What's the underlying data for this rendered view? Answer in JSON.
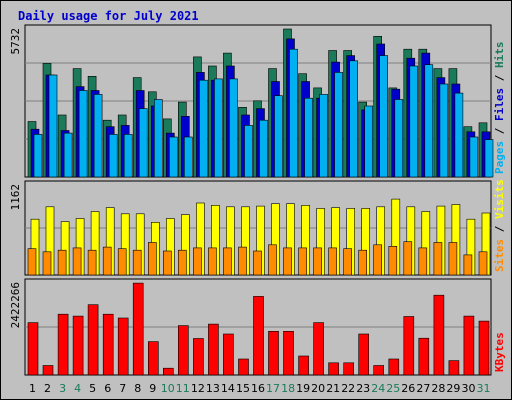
{
  "title": "Daily usage for July 2021",
  "colors": {
    "hits": "#1a7a5a",
    "files": "#0000cc",
    "pages": "#00b0f0",
    "visits": "#ffff00",
    "sites": "#ff8c00",
    "kbytes": "#ff0000",
    "panel": "#c0c0c0",
    "weekend": "#1a7a5a",
    "title": "#0000cc"
  },
  "chart_data": [
    {
      "type": "bar",
      "panel": "hits_files_pages",
      "ymax_label": "5732",
      "ymax": 5732,
      "series_labels": [
        "Pages",
        "Files",
        "Hits"
      ],
      "series": [
        {
          "name": "Hits",
          "values": [
            2150,
            4400,
            2400,
            4200,
            3900,
            2200,
            2400,
            3850,
            3300,
            2250,
            2900,
            4650,
            4300,
            4800,
            2700,
            2950,
            4200,
            5750,
            4000,
            3450,
            4900,
            4900,
            2900,
            5450,
            3450,
            4950,
            4950,
            4200,
            4200,
            1950,
            2100
          ]
        },
        {
          "name": "Files",
          "values": [
            1850,
            3950,
            1800,
            3500,
            3350,
            1950,
            2000,
            3350,
            2750,
            1700,
            2350,
            4050,
            3750,
            4300,
            2400,
            2650,
            3700,
            5350,
            3700,
            3050,
            4450,
            4700,
            2600,
            5150,
            3400,
            4600,
            4800,
            3850,
            3600,
            1750,
            1750
          ]
        },
        {
          "name": "Pages",
          "values": [
            1650,
            3950,
            1700,
            3350,
            3200,
            1650,
            1650,
            2650,
            3000,
            1550,
            1550,
            3750,
            3800,
            3800,
            2000,
            2200,
            3150,
            4950,
            3050,
            3200,
            4050,
            4500,
            2750,
            4700,
            3000,
            4300,
            4350,
            3600,
            3250,
            1550,
            1450
          ]
        }
      ]
    },
    {
      "type": "bar",
      "panel": "sites_visits",
      "ymax_label": "1162",
      "ymax": 1162,
      "series_labels": [
        "Sites",
        "Visits"
      ],
      "series": [
        {
          "name": "Visits",
          "values": [
            720,
            880,
            690,
            730,
            820,
            870,
            790,
            790,
            680,
            730,
            780,
            930,
            900,
            880,
            880,
            890,
            920,
            920,
            900,
            860,
            870,
            860,
            860,
            880,
            980,
            880,
            820,
            890,
            910,
            720,
            800
          ]
        },
        {
          "name": "Sites",
          "values": [
            340,
            300,
            320,
            350,
            320,
            360,
            340,
            320,
            420,
            310,
            320,
            350,
            350,
            350,
            360,
            310,
            390,
            350,
            350,
            350,
            350,
            340,
            320,
            390,
            370,
            430,
            350,
            420,
            420,
            260,
            300
          ]
        }
      ]
    },
    {
      "type": "bar",
      "panel": "kbytes",
      "ymax_label": "2422266",
      "ymax": 2422266,
      "series_labels": [
        "KBytes"
      ],
      "series": [
        {
          "name": "KBytes",
          "values": [
            1380000,
            250000,
            1600000,
            1550000,
            1850000,
            1600000,
            1500000,
            2420000,
            880000,
            180000,
            1300000,
            960000,
            1340000,
            1080000,
            420000,
            2070000,
            1150000,
            1150000,
            500000,
            1380000,
            320000,
            320000,
            1080000,
            250000,
            420000,
            1540000,
            970000,
            2100000,
            380000,
            1550000,
            1420000
          ]
        }
      ]
    }
  ],
  "days": [
    "1",
    "2",
    "3",
    "4",
    "5",
    "6",
    "7",
    "8",
    "9",
    "10",
    "11",
    "12",
    "13",
    "14",
    "15",
    "16",
    "17",
    "18",
    "19",
    "20",
    "21",
    "22",
    "23",
    "24",
    "25",
    "26",
    "27",
    "28",
    "29",
    "30",
    "31"
  ],
  "weekend_days": [
    3,
    4,
    10,
    11,
    17,
    18,
    24,
    25,
    31
  ]
}
